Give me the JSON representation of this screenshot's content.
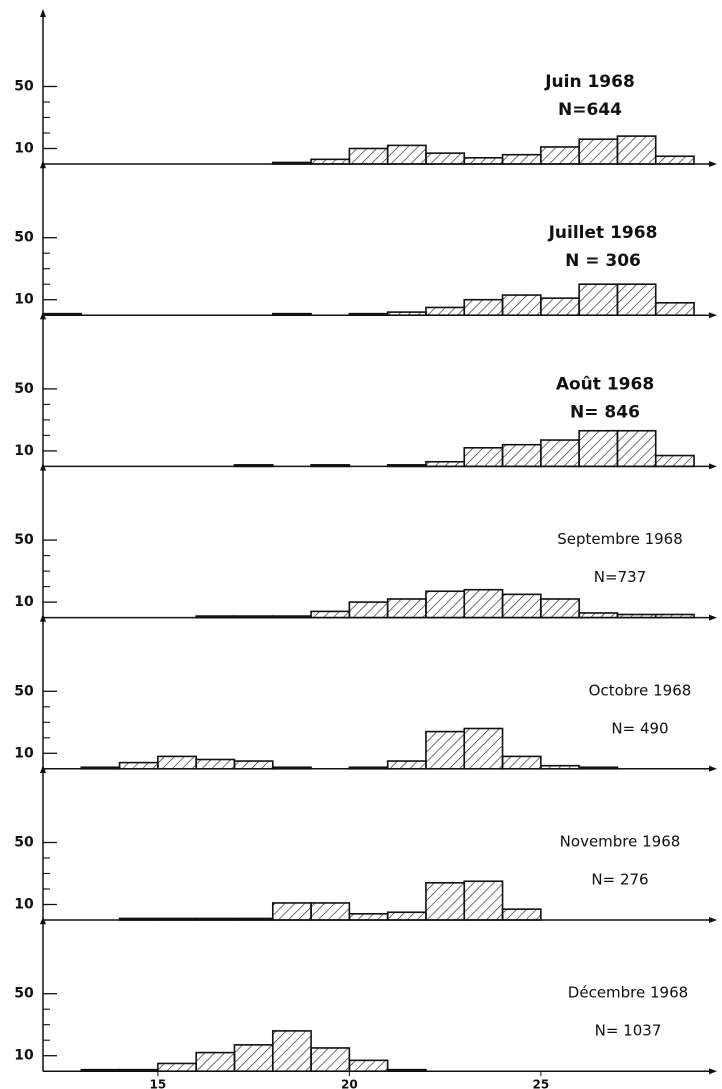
{
  "chart_data": [
    {
      "type": "histogram",
      "title": "Juin 1968",
      "annotation": "N=644",
      "bins": [
        12,
        13,
        14,
        15,
        16,
        17,
        18,
        19,
        20,
        21,
        22,
        23,
        24,
        25,
        26,
        27,
        28,
        29
      ],
      "counts": [
        0,
        0,
        0,
        0,
        0,
        0,
        1,
        3,
        10,
        12,
        7,
        4,
        6,
        11,
        16,
        18,
        5
      ],
      "xlim": [
        12,
        29.6
      ],
      "ylim": [
        0,
        100
      ],
      "yticks": [
        10,
        50
      ],
      "minor_yticks": [
        20,
        30,
        40
      ]
    },
    {
      "type": "histogram",
      "title": "Juillet 1968",
      "annotation": "N = 306",
      "bins": [
        12,
        13,
        14,
        15,
        16,
        17,
        18,
        19,
        20,
        21,
        22,
        23,
        24,
        25,
        26,
        27,
        28,
        29
      ],
      "counts": [
        1,
        0,
        0,
        0,
        0,
        0,
        1,
        0,
        1,
        2,
        5,
        10,
        13,
        11,
        20,
        20,
        8
      ],
      "xlim": [
        12,
        29.6
      ],
      "ylim": [
        0,
        100
      ],
      "yticks": [
        10,
        50
      ],
      "minor_yticks": [
        20,
        30,
        40
      ]
    },
    {
      "type": "histogram",
      "title": "Août 1968",
      "annotation": "N= 846",
      "bins": [
        12,
        13,
        14,
        15,
        16,
        17,
        18,
        19,
        20,
        21,
        22,
        23,
        24,
        25,
        26,
        27,
        28,
        29
      ],
      "counts": [
        0,
        0,
        0,
        0,
        0,
        1,
        0,
        1,
        0,
        1,
        3,
        12,
        14,
        17,
        23,
        23,
        7
      ],
      "xlim": [
        12,
        29.6
      ],
      "ylim": [
        0,
        100
      ],
      "yticks": [
        10,
        50
      ],
      "minor_yticks": [
        20,
        30,
        40
      ]
    },
    {
      "type": "histogram",
      "title": "Septembre 1968",
      "annotation": "N=737",
      "bins": [
        12,
        13,
        14,
        15,
        16,
        17,
        18,
        19,
        20,
        21,
        22,
        23,
        24,
        25,
        26,
        27,
        28,
        29
      ],
      "counts": [
        0,
        0,
        0,
        0,
        1,
        1,
        1,
        4,
        10,
        12,
        17,
        18,
        15,
        12,
        3,
        2,
        2
      ],
      "xlim": [
        12,
        29.6
      ],
      "ylim": [
        0,
        100
      ],
      "yticks": [
        10,
        50
      ],
      "minor_yticks": [
        20,
        30,
        40
      ]
    },
    {
      "type": "histogram",
      "title": "Octobre 1968",
      "annotation": "N= 490",
      "bins": [
        12,
        13,
        14,
        15,
        16,
        17,
        18,
        19,
        20,
        21,
        22,
        23,
        24,
        25,
        26,
        27,
        28,
        29
      ],
      "counts": [
        0,
        1,
        4,
        8,
        6,
        5,
        1,
        0,
        1,
        5,
        24,
        26,
        8,
        2,
        1,
        0,
        0
      ],
      "xlim": [
        12,
        29.6
      ],
      "ylim": [
        0,
        100
      ],
      "yticks": [
        10,
        50
      ],
      "minor_yticks": [
        20,
        30,
        40
      ]
    },
    {
      "type": "histogram",
      "title": "Novembre 1968",
      "annotation": "N= 276",
      "bins": [
        12,
        13,
        14,
        15,
        16,
        17,
        18,
        19,
        20,
        21,
        22,
        23,
        24,
        25,
        26,
        27,
        28,
        29
      ],
      "counts": [
        0,
        0,
        1,
        1,
        1,
        1,
        11,
        11,
        4,
        5,
        24,
        25,
        7,
        0,
        0,
        0,
        0
      ],
      "xlim": [
        12,
        29.6
      ],
      "ylim": [
        0,
        100
      ],
      "yticks": [
        10,
        50
      ],
      "minor_yticks": [
        20,
        30,
        40
      ]
    },
    {
      "type": "histogram",
      "title": "Décembre 1968",
      "annotation": "N= 1037",
      "bins": [
        12,
        13,
        14,
        15,
        16,
        17,
        18,
        19,
        20,
        21,
        22,
        23,
        24,
        25,
        26,
        27,
        28,
        29
      ],
      "counts": [
        0,
        1,
        1,
        5,
        12,
        17,
        26,
        15,
        7,
        1,
        0,
        0,
        0,
        0,
        0,
        0,
        0
      ],
      "xlim": [
        12,
        29.6
      ],
      "ylim": [
        0,
        100
      ],
      "yticks": [
        10,
        50
      ],
      "minor_yticks": [
        20,
        30,
        40
      ],
      "xticks": [
        15,
        20,
        25
      ]
    }
  ]
}
